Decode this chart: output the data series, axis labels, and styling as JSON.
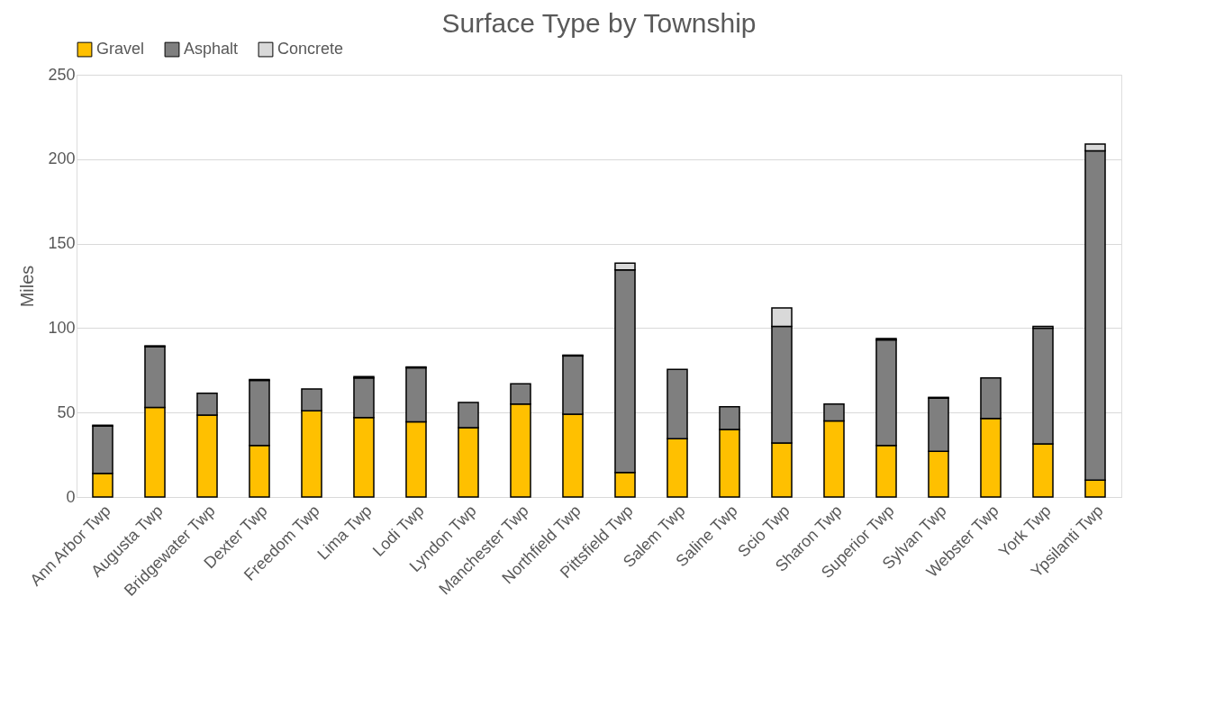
{
  "chart_data": {
    "type": "bar",
    "title": "Surface Type by Township",
    "ylabel": "Miles",
    "categories": [
      "Ann Arbor Twp",
      "Augusta Twp",
      "Bridgewater Twp",
      "Dexter Twp",
      "Freedom Twp",
      "Lima Twp",
      "Lodi Twp",
      "Lyndon Twp",
      "Manchester Twp",
      "Northfield Twp",
      "Pittsfield Twp",
      "Salem Twp",
      "Saline Twp",
      "Scio Twp",
      "Sharon Twp",
      "Superior Twp",
      "Sylvan Twp",
      "Webster Twp",
      "York Twp",
      "Ypsilanti Twp"
    ],
    "series": [
      {
        "name": "Gravel",
        "color": "#ffc000",
        "values": [
          14,
          53,
          48.5,
          30.5,
          51,
          47,
          44.5,
          41,
          55,
          49,
          14.5,
          34.5,
          40,
          32,
          45,
          30.5,
          27,
          46.5,
          31.5,
          10
        ]
      },
      {
        "name": "Asphalt",
        "color": "#7f7f7f",
        "values": [
          28,
          36,
          13,
          38.5,
          13,
          23.5,
          32,
          15,
          12,
          34.5,
          120,
          41,
          13.5,
          69,
          10,
          62.5,
          31.5,
          24,
          68.5,
          195
        ]
      },
      {
        "name": "Concrete",
        "color": "#d9d9d9",
        "values": [
          0.5,
          0.5,
          null,
          0.5,
          null,
          0.8,
          0.5,
          null,
          null,
          0.5,
          4,
          null,
          null,
          11,
          null,
          0.8,
          0.5,
          null,
          1,
          4
        ]
      }
    ],
    "stacked": true,
    "ylim": [
      0,
      250
    ],
    "yticks": [
      0,
      50,
      100,
      150,
      200,
      250
    ],
    "grid": "y",
    "legend": "top"
  }
}
